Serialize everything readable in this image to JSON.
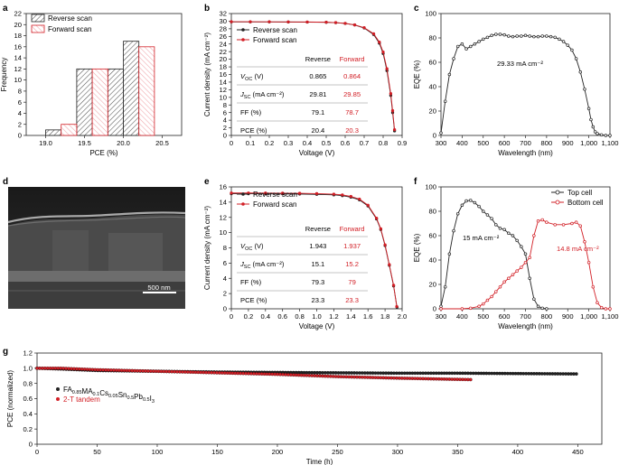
{
  "figure": {
    "panel_labels": [
      "a",
      "b",
      "c",
      "d",
      "e",
      "f",
      "g"
    ],
    "colors": {
      "reverse": "#222222",
      "forward": "#d21f26",
      "forward_fill": "#f5b3b8",
      "grid_hatch": "#555555"
    }
  },
  "chart_data": [
    {
      "id": "a",
      "type": "bar",
      "xlabel": "PCE (%)",
      "ylabel": "Frequency",
      "xlim": [
        18.75,
        20.75
      ],
      "ylim": [
        0,
        22
      ],
      "xticks": [
        "19.0",
        "19.5",
        "20.0",
        "20.5"
      ],
      "yticks": [
        "0",
        "2",
        "4",
        "6",
        "8",
        "10",
        "12",
        "14",
        "16",
        "18",
        "20",
        "22"
      ],
      "legend_position": "top-left",
      "series": [
        {
          "name": "Reverse scan",
          "color": "#222222",
          "bins": [
            [
              19.0,
              19.2
            ],
            [
              19.4,
              19.6
            ],
            [
              19.8,
              20.0
            ],
            [
              20.0,
              20.2
            ]
          ],
          "values": [
            1,
            12,
            12,
            17
          ]
        },
        {
          "name": "Forward scan",
          "color": "#d21f26",
          "bins": [
            [
              19.2,
              19.4
            ],
            [
              19.6,
              19.8
            ],
            [
              20.2,
              20.4
            ]
          ],
          "values": [
            2,
            12,
            16
          ]
        }
      ]
    },
    {
      "id": "b",
      "type": "line",
      "xlabel": "Voltage (V)",
      "ylabel": "Current density (mA cm⁻²)",
      "xlim": [
        0,
        0.9
      ],
      "ylim": [
        0,
        32
      ],
      "xticks": [
        "0",
        "0.1",
        "0.2",
        "0.3",
        "0.4",
        "0.5",
        "0.6",
        "0.7",
        "0.8",
        "0.9"
      ],
      "yticks": [
        "0",
        "2",
        "4",
        "6",
        "8",
        "10",
        "12",
        "14",
        "16",
        "18",
        "20",
        "22",
        "24",
        "26",
        "28",
        "30",
        "32"
      ],
      "legend_position": "top-left",
      "series": [
        {
          "name": "Reverse scan",
          "color": "#222222",
          "x": [
            0,
            0.1,
            0.2,
            0.3,
            0.4,
            0.5,
            0.55,
            0.6,
            0.65,
            0.7,
            0.75,
            0.78,
            0.8,
            0.82,
            0.84,
            0.85,
            0.86
          ],
          "y": [
            29.81,
            29.8,
            29.8,
            29.78,
            29.75,
            29.7,
            29.6,
            29.4,
            29.0,
            28.2,
            26.5,
            24.2,
            21.5,
            17.0,
            10.5,
            6.0,
            1.2
          ]
        },
        {
          "name": "Forward scan",
          "color": "#d21f26",
          "x": [
            0,
            0.1,
            0.2,
            0.3,
            0.4,
            0.5,
            0.55,
            0.6,
            0.65,
            0.7,
            0.75,
            0.78,
            0.8,
            0.82,
            0.84,
            0.85,
            0.86
          ],
          "y": [
            29.85,
            29.84,
            29.83,
            29.8,
            29.78,
            29.72,
            29.62,
            29.42,
            29.02,
            28.3,
            26.7,
            24.5,
            21.9,
            17.5,
            11.0,
            6.5,
            1.5
          ]
        }
      ],
      "table": {
        "headers": [
          "",
          "Reverse",
          "Forward"
        ],
        "rows": [
          {
            "label": "V_OC (V)",
            "reverse": "0.865",
            "forward": "0.864"
          },
          {
            "label": "J_SC (mA cm⁻²)",
            "reverse": "29.81",
            "forward": "29.85"
          },
          {
            "label": "FF (%)",
            "reverse": "79.1",
            "forward": "78.7"
          },
          {
            "label": "PCE (%)",
            "reverse": "20.4",
            "forward": "20.3"
          }
        ]
      }
    },
    {
      "id": "c",
      "type": "line",
      "xlabel": "Wavelength (nm)",
      "ylabel": "EQE (%)",
      "xlim": [
        300,
        1100
      ],
      "ylim": [
        0,
        100
      ],
      "xticks": [
        "300",
        "400",
        "500",
        "600",
        "700",
        "800",
        "900",
        "1,000",
        "1,100"
      ],
      "yticks": [
        "0",
        "20",
        "40",
        "60",
        "80",
        "100"
      ],
      "annotation": "29.33 mA cm⁻²",
      "series": [
        {
          "name": "",
          "color": "#222222",
          "x": [
            300,
            320,
            340,
            360,
            380,
            400,
            420,
            440,
            460,
            480,
            500,
            520,
            540,
            560,
            580,
            600,
            620,
            640,
            660,
            680,
            700,
            720,
            740,
            760,
            780,
            800,
            820,
            840,
            860,
            880,
            900,
            920,
            940,
            960,
            980,
            1000,
            1010,
            1020,
            1030,
            1040,
            1060,
            1080,
            1100
          ],
          "y": [
            2,
            28,
            50,
            63,
            73,
            75,
            71,
            73,
            75,
            77,
            79,
            80.5,
            82,
            83,
            83,
            82.5,
            81.5,
            81,
            81.5,
            81.5,
            82,
            81.5,
            81,
            81,
            81.5,
            81.5,
            81,
            80.5,
            79,
            77,
            74,
            70,
            63,
            52,
            38,
            22,
            13,
            7,
            3,
            1.5,
            0.5,
            0,
            0
          ]
        }
      ]
    },
    {
      "id": "d",
      "type": "image",
      "scale_bar_label": "500 nm"
    },
    {
      "id": "e",
      "type": "line",
      "xlabel": "Voltage (V)",
      "ylabel": "Current density (mA cm⁻²)",
      "xlim": [
        0,
        2.0
      ],
      "ylim": [
        0,
        16
      ],
      "xticks": [
        "0",
        "0.2",
        "0.4",
        "0.6",
        "0.8",
        "1.0",
        "1.2",
        "1.4",
        "1.6",
        "1.8",
        "2.0"
      ],
      "yticks": [
        "0",
        "2",
        "4",
        "6",
        "8",
        "10",
        "12",
        "14",
        "16"
      ],
      "legend_position": "top-left",
      "series": [
        {
          "name": "Reverse scan",
          "color": "#222222",
          "x": [
            0,
            0.2,
            0.4,
            0.6,
            0.8,
            1.0,
            1.2,
            1.3,
            1.4,
            1.5,
            1.6,
            1.7,
            1.75,
            1.8,
            1.85,
            1.9,
            1.94
          ],
          "y": [
            15.1,
            15.1,
            15.09,
            15.08,
            15.06,
            15.02,
            14.95,
            14.85,
            14.65,
            14.3,
            13.5,
            11.8,
            10.4,
            8.3,
            5.7,
            3.0,
            0.2
          ]
        },
        {
          "name": "Forward scan",
          "color": "#d21f26",
          "x": [
            0,
            0.2,
            0.4,
            0.6,
            0.8,
            1.0,
            1.2,
            1.3,
            1.4,
            1.5,
            1.6,
            1.7,
            1.75,
            1.8,
            1.85,
            1.9,
            1.937
          ],
          "y": [
            15.2,
            15.2,
            15.19,
            15.18,
            15.16,
            15.12,
            15.05,
            14.95,
            14.75,
            14.4,
            13.6,
            11.9,
            10.5,
            8.4,
            5.8,
            3.1,
            0.3
          ]
        }
      ],
      "table": {
        "headers": [
          "",
          "Reverse",
          "Forward"
        ],
        "rows": [
          {
            "label": "V_OC (V)",
            "reverse": "1.943",
            "forward": "1.937"
          },
          {
            "label": "J_SC (mA cm⁻²)",
            "reverse": "15.1",
            "forward": "15.2"
          },
          {
            "label": "FF (%)",
            "reverse": "79.3",
            "forward": "79"
          },
          {
            "label": "PCE (%)",
            "reverse": "23.3",
            "forward": "23.3"
          }
        ]
      }
    },
    {
      "id": "f",
      "type": "line",
      "xlabel": "Wavelength (nm)",
      "ylabel": "EQE (%)",
      "xlim": [
        300,
        1100
      ],
      "ylim": [
        0,
        100
      ],
      "xticks": [
        "300",
        "400",
        "500",
        "600",
        "700",
        "800",
        "900",
        "1,000",
        "1,100"
      ],
      "yticks": [
        "0",
        "20",
        "40",
        "60",
        "80",
        "100"
      ],
      "legend_position": "top-right",
      "annotations": [
        "15 mA cm⁻²",
        "14.8 mA cm⁻²"
      ],
      "series": [
        {
          "name": "Top cell",
          "color": "#222222",
          "x": [
            300,
            320,
            340,
            360,
            380,
            400,
            420,
            440,
            460,
            480,
            500,
            520,
            540,
            560,
            580,
            600,
            620,
            640,
            660,
            680,
            700,
            720,
            740,
            760,
            780,
            800
          ],
          "y": [
            2,
            18,
            45,
            64,
            78,
            85,
            88.5,
            89,
            87,
            84,
            80,
            77,
            74,
            69,
            66,
            65,
            62,
            60,
            56,
            51,
            45,
            25,
            8,
            2,
            0.5,
            0
          ]
        },
        {
          "name": "Bottom cell",
          "color": "#d21f26",
          "x": [
            300,
            400,
            440,
            480,
            500,
            520,
            540,
            560,
            580,
            600,
            620,
            640,
            660,
            680,
            700,
            720,
            740,
            760,
            780,
            800,
            840,
            880,
            920,
            940,
            960,
            980,
            1000,
            1020,
            1040,
            1060,
            1080,
            1100
          ],
          "y": [
            0,
            0,
            0.5,
            2,
            4,
            7,
            10,
            14,
            18,
            22,
            25,
            28,
            31,
            34,
            38,
            42,
            60,
            72,
            73,
            71,
            69,
            69,
            70,
            71,
            68,
            55,
            38,
            18,
            5,
            1,
            0,
            0
          ]
        }
      ]
    },
    {
      "id": "g",
      "type": "scatter",
      "xlabel": "Time (h)",
      "ylabel": "PCE (normalized)",
      "xlim": [
        0,
        470
      ],
      "ylim": [
        0,
        1.2
      ],
      "xticks": [
        "0",
        "50",
        "100",
        "150",
        "200",
        "250",
        "300",
        "350",
        "400",
        "450"
      ],
      "yticks": [
        "0",
        "0.2",
        "0.4",
        "0.6",
        "0.8",
        "1.0",
        "1.2"
      ],
      "legend_position": "left",
      "series": [
        {
          "name": "FA0.85MA0.1Cs0.05Sn0.5Pb0.5I3",
          "color": "#222222",
          "x": [
            0,
            20,
            50,
            100,
            150,
            200,
            250,
            300,
            350,
            400,
            450
          ],
          "y": [
            1.0,
            0.99,
            0.97,
            0.96,
            0.95,
            0.945,
            0.94,
            0.935,
            0.935,
            0.93,
            0.925
          ]
        },
        {
          "name": "2-T tandem",
          "color": "#d21f26",
          "x": [
            0,
            20,
            50,
            100,
            150,
            200,
            250,
            300,
            330,
            362
          ],
          "y": [
            1.0,
            1.0,
            0.98,
            0.96,
            0.94,
            0.92,
            0.89,
            0.87,
            0.86,
            0.85
          ]
        }
      ]
    }
  ]
}
